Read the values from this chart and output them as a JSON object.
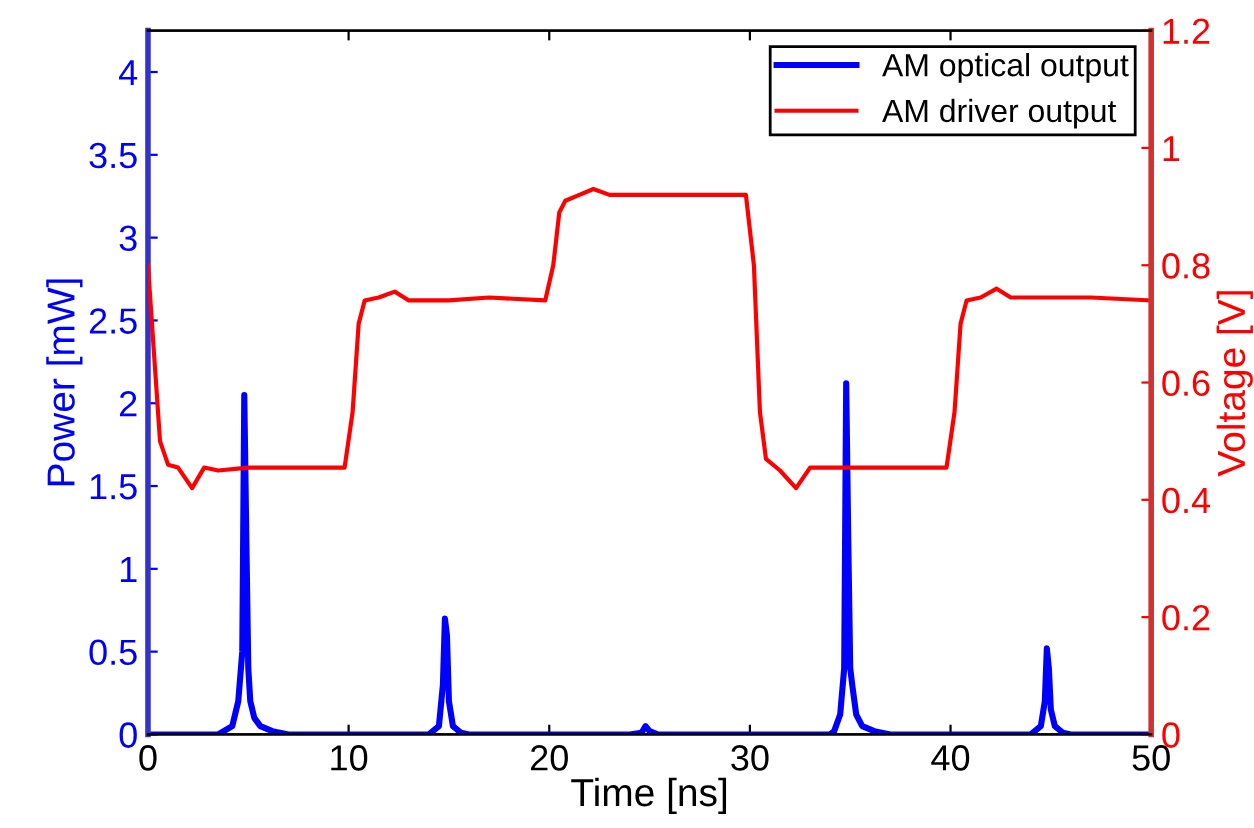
{
  "chart_data": {
    "type": "line",
    "xlabel": "Time [ns]",
    "ylabel": "Power [mW]",
    "y2label": "Voltage [V]",
    "xlim": [
      0,
      50
    ],
    "xticks": [
      0,
      10,
      20,
      30,
      40,
      50
    ],
    "ylim": [
      0,
      4.25
    ],
    "yticks": [
      0,
      0.5,
      1,
      1.5,
      2,
      2.5,
      3,
      3.5,
      4
    ],
    "y2lim": [
      0,
      1.2
    ],
    "y2ticks": [
      0,
      0.2,
      0.4,
      0.6,
      0.8,
      1,
      1.2
    ],
    "legend": "top right",
    "grid": false,
    "marker": "none",
    "line_style": "solid",
    "series": [
      {
        "name": "AM optical output",
        "color": "#0000ff",
        "x": [
          0,
          3.5,
          4.2,
          4.5,
          4.7,
          4.8,
          4.9,
          5.0,
          5.1,
          5.3,
          5.6,
          6.2,
          7,
          14,
          14.5,
          14.7,
          14.8,
          14.9,
          15.0,
          15.2,
          15.6,
          16,
          24,
          24.6,
          24.8,
          25.0,
          25.4,
          26,
          34,
          34.2,
          34.5,
          34.7,
          34.8,
          34.9,
          35.0,
          35.1,
          35.3,
          35.6,
          36.2,
          37,
          44,
          44.5,
          44.7,
          44.8,
          44.9,
          45.0,
          45.2,
          45.6,
          46,
          50
        ],
        "values": [
          0,
          0,
          0.05,
          0.2,
          0.5,
          2.05,
          1.2,
          0.4,
          0.2,
          0.1,
          0.05,
          0.02,
          0,
          0,
          0.05,
          0.3,
          0.7,
          0.6,
          0.2,
          0.05,
          0.01,
          0,
          0,
          0.01,
          0.05,
          0.02,
          0,
          0,
          0,
          0.02,
          0.12,
          0.4,
          2.12,
          1.2,
          0.4,
          0.3,
          0.12,
          0.05,
          0.02,
          0,
          0,
          0.05,
          0.2,
          0.52,
          0.4,
          0.15,
          0.05,
          0.01,
          0,
          0
        ]
      },
      {
        "name": "AM driver output",
        "color": "#ff0000",
        "axis": "y2",
        "x": [
          0,
          0.3,
          0.6,
          1.0,
          1.5,
          2.2,
          2.8,
          3.5,
          5,
          7,
          9,
          9.8,
          10.2,
          10.5,
          10.8,
          11.5,
          12.3,
          13,
          15,
          17,
          19.8,
          20.2,
          20.5,
          20.8,
          21.5,
          22.2,
          23,
          25,
          28,
          29.8,
          30.2,
          30.5,
          30.8,
          31.5,
          32.3,
          33,
          35,
          37,
          39.8,
          40.2,
          40.5,
          40.8,
          41.5,
          42.3,
          43,
          45,
          47,
          50
        ],
        "values": [
          0.8,
          0.65,
          0.5,
          0.46,
          0.455,
          0.42,
          0.455,
          0.45,
          0.455,
          0.455,
          0.455,
          0.455,
          0.55,
          0.7,
          0.74,
          0.745,
          0.755,
          0.74,
          0.74,
          0.745,
          0.74,
          0.8,
          0.89,
          0.91,
          0.92,
          0.93,
          0.92,
          0.92,
          0.92,
          0.92,
          0.8,
          0.55,
          0.47,
          0.45,
          0.42,
          0.455,
          0.455,
          0.455,
          0.455,
          0.55,
          0.7,
          0.74,
          0.745,
          0.76,
          0.745,
          0.745,
          0.745,
          0.74
        ]
      }
    ]
  }
}
